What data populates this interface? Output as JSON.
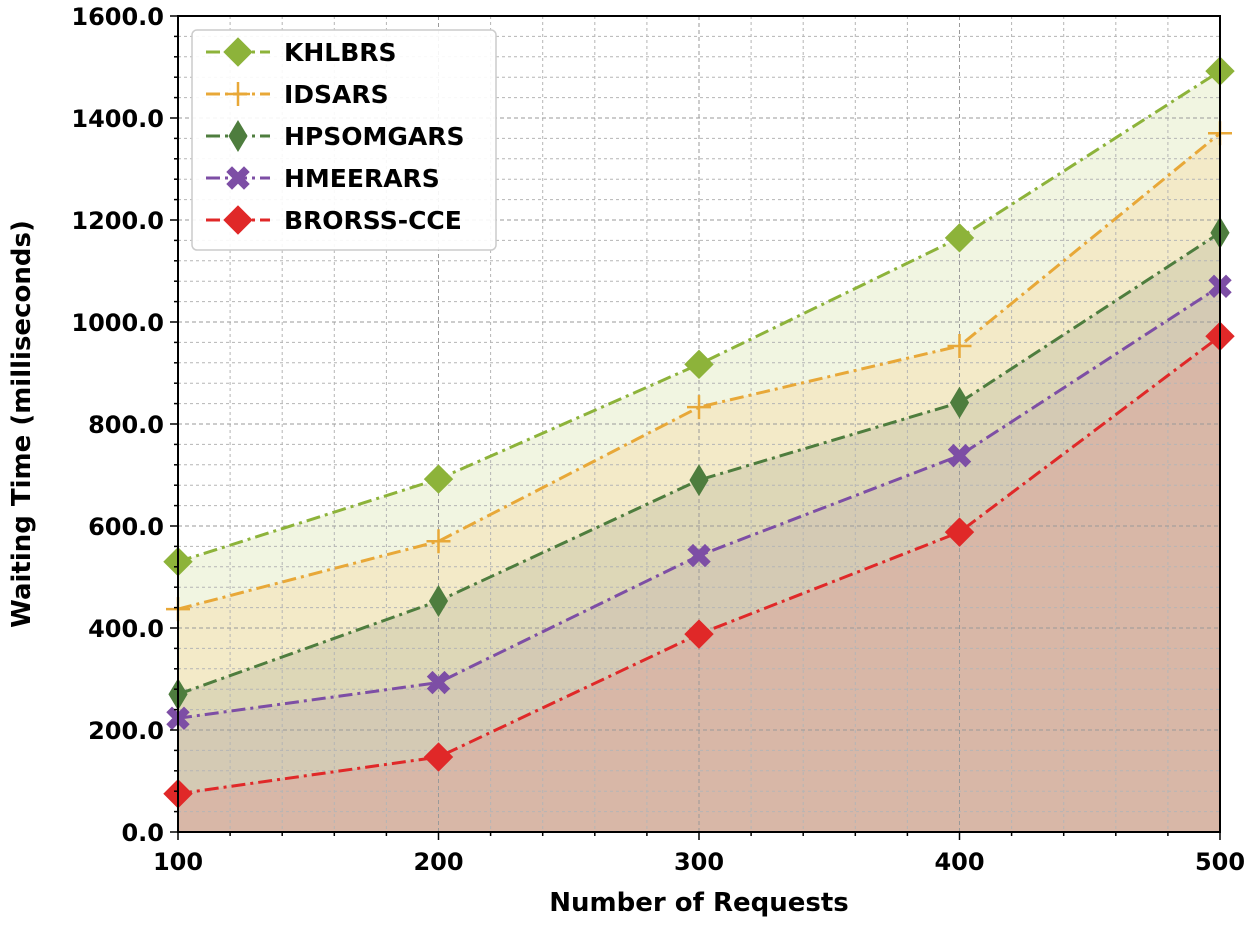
{
  "chart_data": {
    "type": "area",
    "xlabel": "Number of Requests",
    "ylabel": "Waiting Time (milliseconds)",
    "x": [
      100,
      200,
      300,
      400,
      500
    ],
    "xlim": [
      100,
      500
    ],
    "ylim": [
      0,
      1600
    ],
    "x_ticks": [
      "100",
      "200",
      "300",
      "400",
      "500"
    ],
    "y_ticks": [
      "0.0",
      "200.0",
      "400.0",
      "600.0",
      "800.0",
      "1000.0",
      "1200.0",
      "1400.0",
      "1600.0"
    ],
    "grid": true,
    "legend_position": "top-left",
    "series": [
      {
        "name": "KHLBRS",
        "values": [
          530,
          692,
          917,
          1165,
          1492
        ],
        "color": "#8db33a",
        "fill": "#eef3dc",
        "marker": "diamond"
      },
      {
        "name": "IDSARS",
        "values": [
          437,
          570,
          833,
          953,
          1370
        ],
        "color": "#e8a838",
        "fill": "#f3e8c3",
        "marker": "plus"
      },
      {
        "name": "HPSOMGARS",
        "values": [
          270,
          453,
          690,
          842,
          1175
        ],
        "color": "#4e7d3e",
        "fill": "#d8d4b4",
        "marker": "thin-diamond"
      },
      {
        "name": "HMEERARS",
        "values": [
          223,
          293,
          542,
          738,
          1070
        ],
        "color": "#7d4ea5",
        "fill": "#d2c8b4",
        "marker": "x"
      },
      {
        "name": "BRORSS-CCE",
        "values": [
          75,
          147,
          388,
          588,
          972
        ],
        "color": "#e02828",
        "fill": "#d8b4a4",
        "marker": "diamond"
      }
    ]
  }
}
